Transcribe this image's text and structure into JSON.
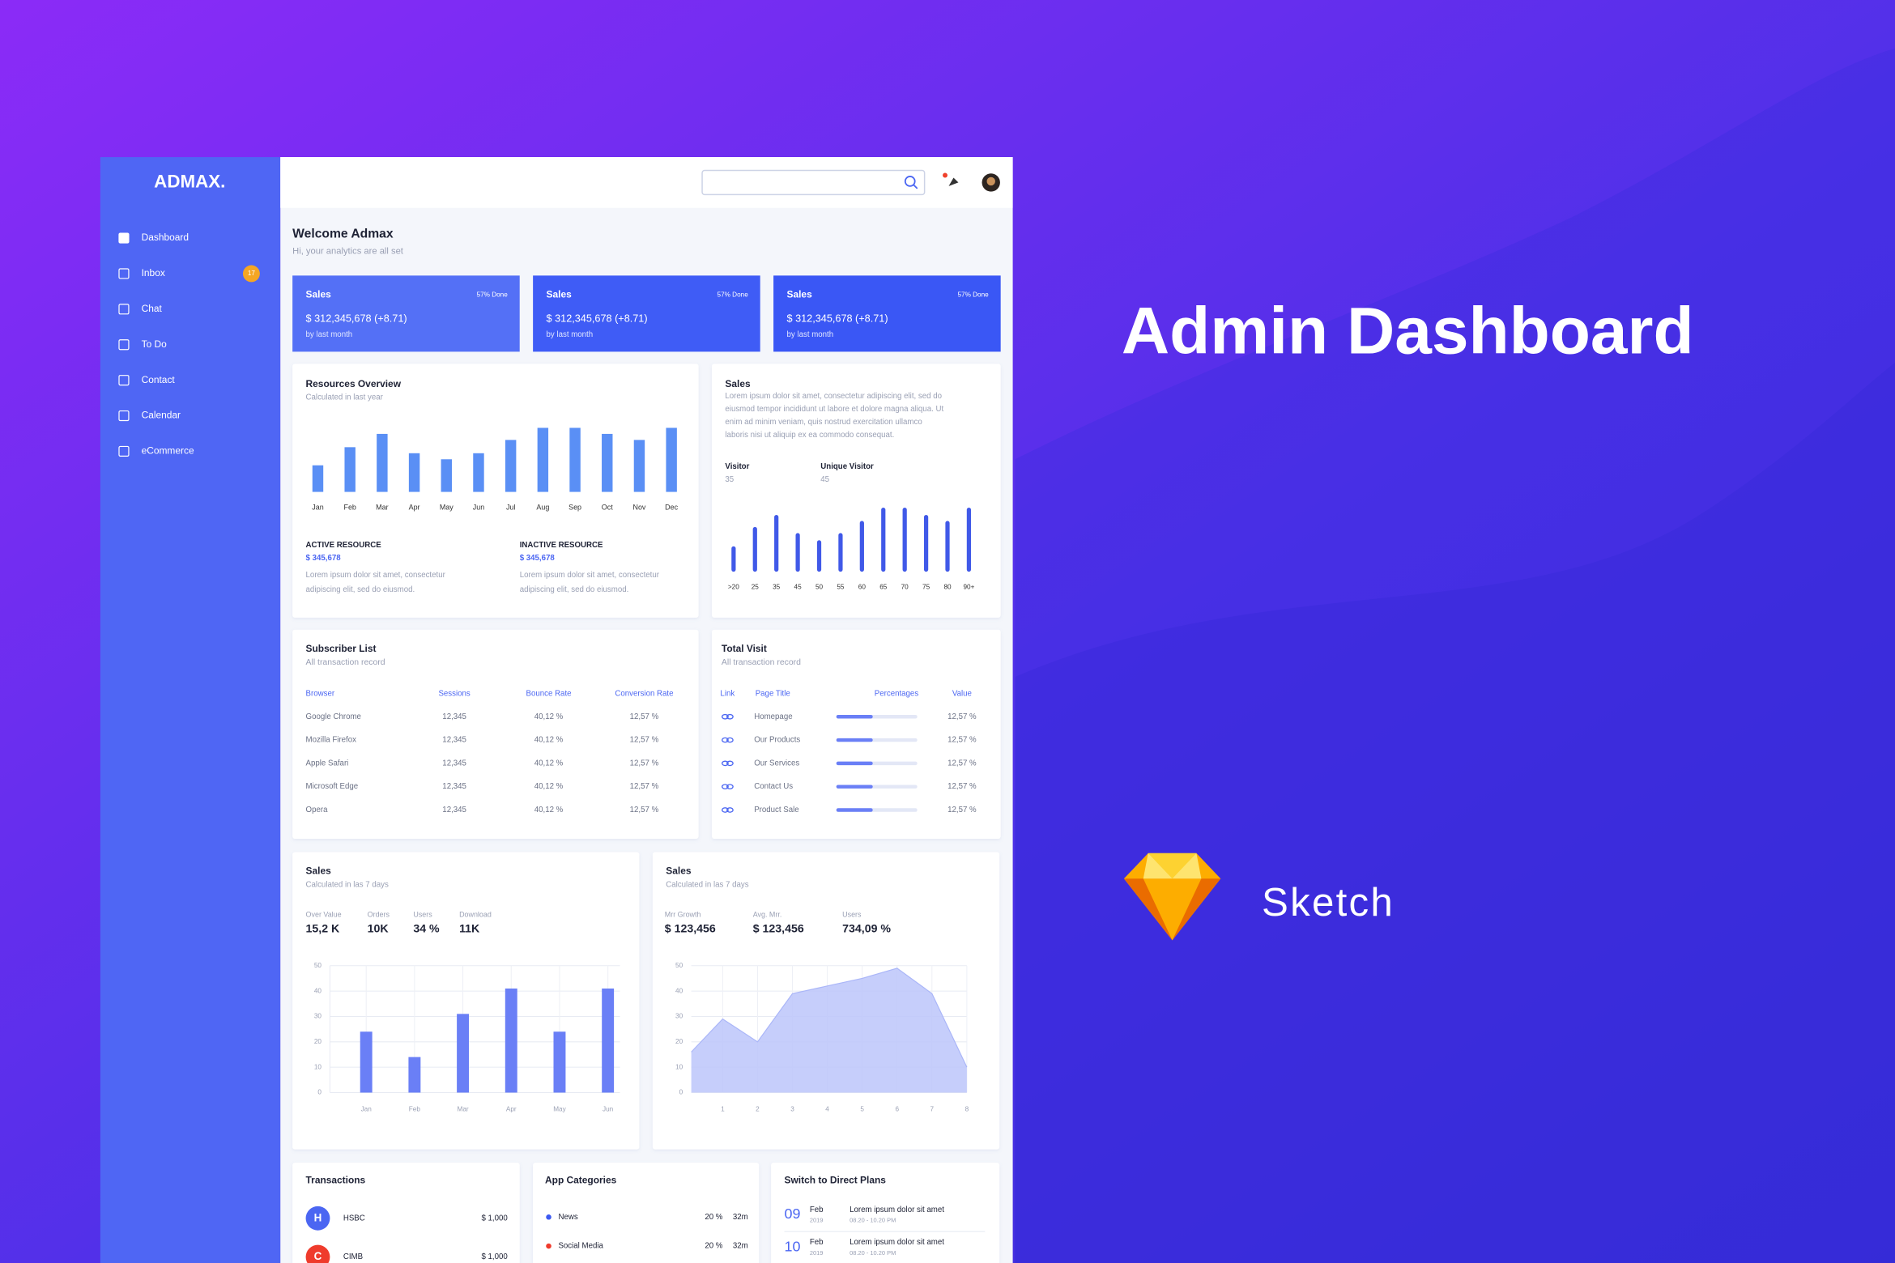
{
  "hero": {
    "title": "Admin Dashboard",
    "tool": "Sketch"
  },
  "sidebar": {
    "brand": "ADMAX.",
    "menu": [
      {
        "label": "Dashboard"
      },
      {
        "label": "Inbox",
        "badge": "17"
      },
      {
        "label": "Chat"
      },
      {
        "label": "To Do"
      },
      {
        "label": "Contact"
      },
      {
        "label": "Calendar"
      },
      {
        "label": "eCommerce"
      }
    ]
  },
  "welcome": {
    "title": "Welcome Admax",
    "subtitle": "Hi, your analytics are all set"
  },
  "stat_cards": [
    {
      "title": "Sales",
      "progress": "57% Done",
      "amount": "$ 312,345,678 (+8.71)",
      "note": "by last month",
      "color": "#5470f6"
    },
    {
      "title": "Sales",
      "progress": "57% Done",
      "amount": "$ 312,345,678 (+8.71)",
      "note": "by last month",
      "color": "#3f5cf6"
    },
    {
      "title": "Sales",
      "progress": "57% Done",
      "amount": "$ 312,345,678 (+8.71)",
      "note": "by last month",
      "color": "#3a57f5"
    }
  ],
  "resources_overview": {
    "title": "Resources Overview",
    "subtitle": "Calculated in last year",
    "type": "bar",
    "color": "#5a8ff5",
    "categories": [
      "Jan",
      "Feb",
      "Mar",
      "Apr",
      "May",
      "Jun",
      "Jul",
      "Aug",
      "Sep",
      "Oct",
      "Nov",
      "Dec"
    ],
    "values": [
      22,
      37,
      48,
      32,
      27,
      32,
      43,
      53,
      53,
      48,
      43,
      53
    ],
    "active": {
      "label": "ACTIVE RESOURCE",
      "value": "$ 345,678",
      "text_lines": [
        "Lorem ipsum dolor sit amet, consectetur",
        "adipiscing elit, sed do eiusmod."
      ]
    },
    "inactive": {
      "label": "INACTIVE RESOURCE",
      "value": "$ 345,678",
      "text_lines": [
        "Lorem ipsum dolor sit amet, consectetur",
        "adipiscing elit, sed do eiusmod."
      ]
    }
  },
  "sales_info": {
    "title": "Sales",
    "text_lines": [
      "Lorem ipsum dolor sit amet, consectetur adipiscing elit, sed do",
      "eiusmod tempor incididunt ut labore et dolore magna aliqua. Ut",
      "enim ad minim veniam, quis nostrud exercitation ullamco",
      "laboris nisi ut aliquip ex ea commodo consequat."
    ],
    "visitor": {
      "label": "Visitor",
      "value": 35
    },
    "unique_visitor": {
      "label": "Unique Visitor",
      "value": 45
    },
    "type": "bar",
    "color": "#4059e8",
    "categories": [
      ">20",
      "25",
      "35",
      "45",
      "50",
      "55",
      "60",
      "65",
      "70",
      "75",
      "80",
      "90+"
    ],
    "values": [
      21,
      37,
      47,
      32,
      26,
      32,
      42,
      53,
      53,
      47,
      42,
      53
    ]
  },
  "subscriber_list": {
    "title": "Subscriber List",
    "subtitle": "All transaction record",
    "columns": [
      "Browser",
      "Sessions",
      "Bounce Rate",
      "Conversion Rate"
    ],
    "rows": [
      [
        "Google Chrome",
        "12,345",
        "40,12 %",
        "12,57 %"
      ],
      [
        "Mozilla Firefox",
        "12,345",
        "40,12 %",
        "12,57 %"
      ],
      [
        "Apple Safari",
        "12,345",
        "40,12 %",
        "12,57 %"
      ],
      [
        "Microsoft Edge",
        "12,345",
        "40,12 %",
        "12,57 %"
      ],
      [
        "Opera",
        "12,345",
        "40,12 %",
        "12,57 %"
      ]
    ]
  },
  "total_visit": {
    "title": "Total Visit",
    "subtitle": "All transaction record",
    "columns": [
      "Link",
      "Page Title",
      "Percentages",
      "Value"
    ],
    "rows": [
      {
        "page": "Homepage",
        "percentage": 45,
        "value": "12,57 %"
      },
      {
        "page": "Our Products",
        "percentage": 45,
        "value": "12,57 %"
      },
      {
        "page": "Our Services",
        "percentage": 45,
        "value": "12,57 %"
      },
      {
        "page": "Contact Us",
        "percentage": 45,
        "value": "12,57 %"
      },
      {
        "page": "Product Sale",
        "percentage": 45,
        "value": "12,57 %"
      }
    ]
  },
  "sales_bars": {
    "title": "Sales",
    "subtitle": "Calculated in las 7 days",
    "stats": [
      {
        "label": "Over Value",
        "value": "15,2 K"
      },
      {
        "label": "Orders",
        "value": "10K"
      },
      {
        "label": "Users",
        "value": "34 %"
      },
      {
        "label": "Download",
        "value": "11K"
      }
    ],
    "chart": {
      "type": "bar",
      "categories": [
        "Jan",
        "Feb",
        "Mar",
        "Apr",
        "May",
        "Jun"
      ],
      "values": [
        24,
        14,
        31,
        41,
        24,
        41
      ],
      "ylim": [
        0,
        50
      ],
      "yticks": [
        0,
        10,
        20,
        30,
        40,
        50
      ],
      "grid": true,
      "color": "#6a7ff6"
    }
  },
  "sales_area": {
    "title": "Sales",
    "subtitle": "Calculated in las 7 days",
    "stats": [
      {
        "label": "Mrr Growth",
        "value": "$ 123,456"
      },
      {
        "label": "Avg. Mrr.",
        "value": "$ 123,456"
      },
      {
        "label": "Users",
        "value": "734,09 %"
      }
    ],
    "chart": {
      "type": "area",
      "x": [
        0.1,
        1,
        2,
        3,
        4,
        5,
        6,
        7,
        8
      ],
      "values": [
        16,
        29,
        20,
        39,
        42,
        45,
        49,
        39,
        10
      ],
      "xlim": [
        0.1,
        8
      ],
      "xticks": [
        1,
        2,
        3,
        4,
        5,
        6,
        7,
        8
      ],
      "ylim": [
        0,
        50
      ],
      "yticks": [
        0,
        10,
        20,
        30,
        40,
        50
      ],
      "grid": true,
      "color": "#bcc6fa"
    }
  },
  "transactions": {
    "title": "Transactions",
    "items": [
      {
        "initial": "H",
        "name": "HSBC",
        "amount": "$ 1,000",
        "color": "#4b66f2"
      },
      {
        "initial": "C",
        "name": "CIMB",
        "amount": "$ 1,000",
        "color": "#ef3b2c"
      }
    ]
  },
  "app_categories": {
    "title": "App Categories",
    "items": [
      {
        "name": "News",
        "share": "20 %",
        "count": "32m",
        "color": "#3d5af1"
      },
      {
        "name": "Social Media",
        "share": "20 %",
        "count": "32m",
        "color": "#ef3b2c"
      }
    ]
  },
  "direct_plans": {
    "title": "Switch to Direct Plans",
    "items": [
      {
        "day": "09",
        "month": "Feb",
        "year": "2019",
        "text": "Lorem ipsum dolor sit amet",
        "time": "08.20 - 10.20 PM"
      },
      {
        "day": "10",
        "month": "Feb",
        "year": "2019",
        "text": "Lorem ipsum dolor sit amet",
        "time": "08.20 - 10.20 PM"
      }
    ]
  }
}
